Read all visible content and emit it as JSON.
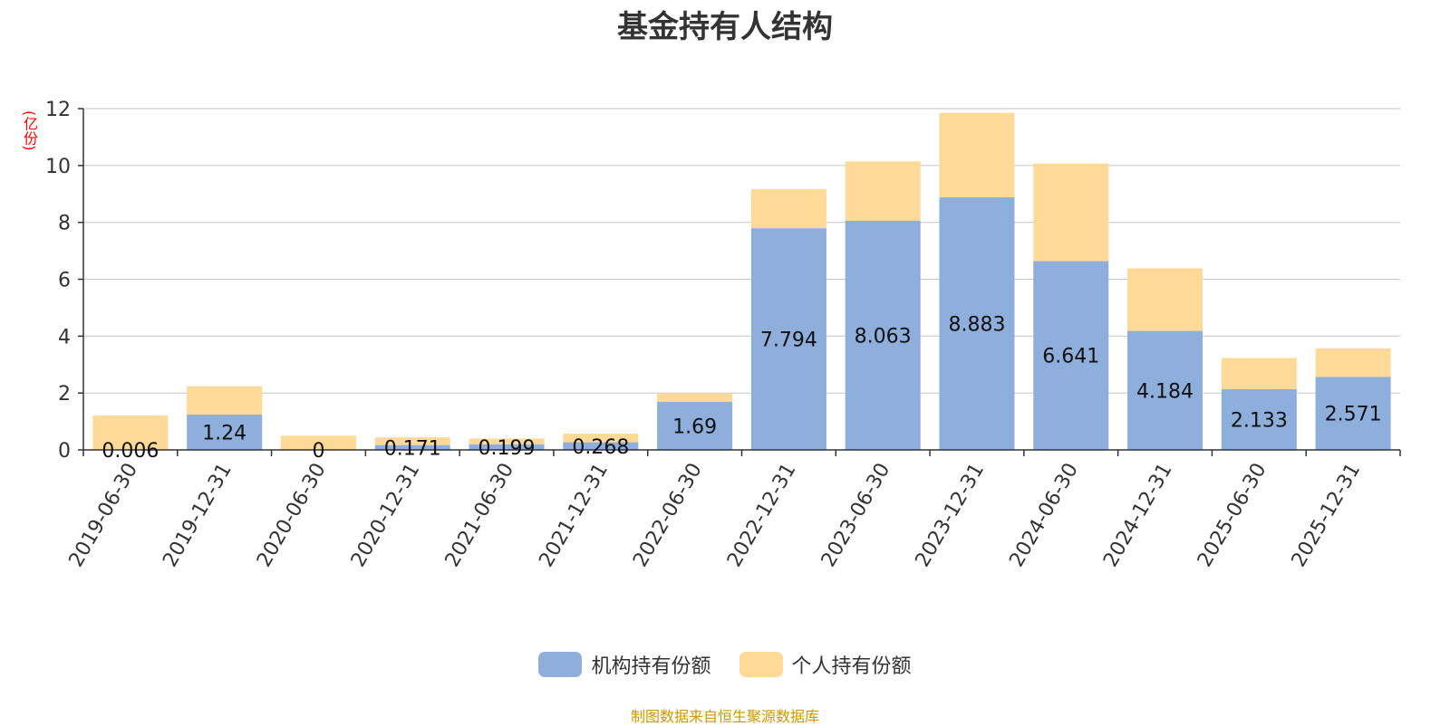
{
  "title": "基金持有人结构",
  "unit_label": "(亿份)",
  "source": "制图数据来自恒生聚源数据库",
  "colors": {
    "institution": "#8eaedb",
    "individual": "#ffd998",
    "grid": "#cccccc",
    "axis": "#333333"
  },
  "chart_data": {
    "type": "bar",
    "stacked": true,
    "categories": [
      "2019-06-30",
      "2019-12-31",
      "2020-06-30",
      "2020-12-31",
      "2021-06-30",
      "2021-12-31",
      "2022-06-30",
      "2022-12-31",
      "2023-06-30",
      "2023-12-31",
      "2024-06-30",
      "2024-12-31",
      "2025-06-30",
      "2025-12-31"
    ],
    "series": [
      {
        "name": "机构持有份额",
        "color": "#8eaedb",
        "values": [
          0.006,
          1.24,
          0,
          0.171,
          0.199,
          0.268,
          1.69,
          7.794,
          8.063,
          8.883,
          6.641,
          4.184,
          2.133,
          2.571
        ],
        "labels": [
          "0.006",
          "1.24",
          "0",
          "0.171",
          "0.199",
          "0.268",
          "1.69",
          "7.794",
          "8.063",
          "8.883",
          "6.641",
          "4.184",
          "2.133",
          "2.571"
        ]
      },
      {
        "name": "个人持有份额",
        "color": "#ffd998",
        "values": [
          1.2,
          1.0,
          0.5,
          0.27,
          0.2,
          0.3,
          0.3,
          1.37,
          2.08,
          2.97,
          3.43,
          2.2,
          1.1,
          1.0
        ]
      }
    ],
    "ylim": [
      0,
      12
    ],
    "yticks": [
      0,
      2,
      4,
      6,
      8,
      10,
      12
    ],
    "grid": true,
    "legend_position": "bottom"
  }
}
